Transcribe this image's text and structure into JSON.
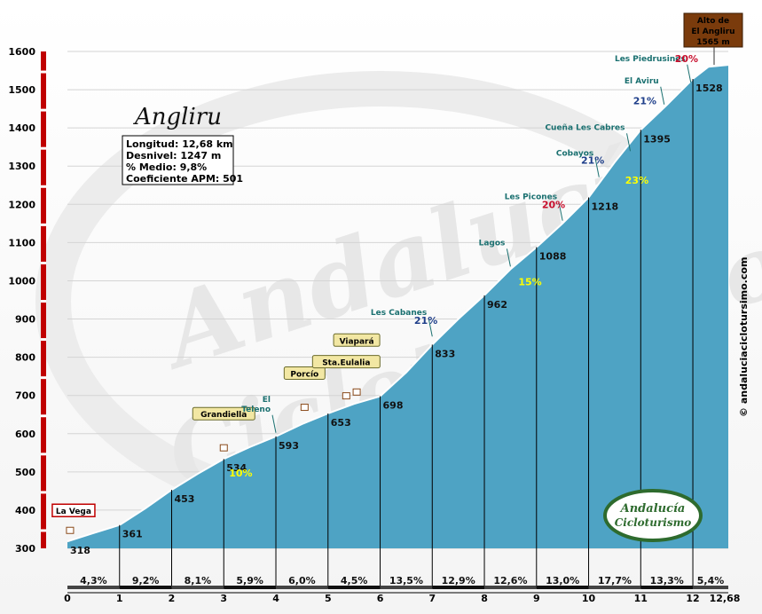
{
  "chart_data": {
    "type": "area",
    "title": "Angliru",
    "stats": [
      "Longitud: 12,68 km",
      "Desnivel: 1247 m",
      "% Medio: 9,8%",
      "Coeficiente APM: 501"
    ],
    "xlim": [
      0,
      12.68
    ],
    "ylim": [
      300,
      1600
    ],
    "x_ticks": [
      "0",
      "1",
      "2",
      "3",
      "4",
      "5",
      "6",
      "7",
      "8",
      "9",
      "10",
      "11",
      "12"
    ],
    "x_end_label": "12,68",
    "y_ticks": [
      "300",
      "400",
      "500",
      "600",
      "700",
      "800",
      "900",
      "1000",
      "1100",
      "1200",
      "1300",
      "1400",
      "1500",
      "1600"
    ],
    "profile": [
      {
        "x": 0,
        "y": 318
      },
      {
        "x": 0.5,
        "y": 340
      },
      {
        "x": 1,
        "y": 361
      },
      {
        "x": 1.5,
        "y": 405
      },
      {
        "x": 2,
        "y": 453
      },
      {
        "x": 2.5,
        "y": 495
      },
      {
        "x": 3,
        "y": 534
      },
      {
        "x": 3.5,
        "y": 565
      },
      {
        "x": 4,
        "y": 593
      },
      {
        "x": 4.5,
        "y": 625
      },
      {
        "x": 5,
        "y": 653
      },
      {
        "x": 5.5,
        "y": 678
      },
      {
        "x": 6,
        "y": 698
      },
      {
        "x": 6.5,
        "y": 760
      },
      {
        "x": 7,
        "y": 833
      },
      {
        "x": 7.5,
        "y": 900
      },
      {
        "x": 8,
        "y": 962
      },
      {
        "x": 8.5,
        "y": 1030
      },
      {
        "x": 9,
        "y": 1088
      },
      {
        "x": 9.5,
        "y": 1150
      },
      {
        "x": 10,
        "y": 1218
      },
      {
        "x": 10.5,
        "y": 1310
      },
      {
        "x": 11,
        "y": 1395
      },
      {
        "x": 11.5,
        "y": 1460
      },
      {
        "x": 12,
        "y": 1528
      },
      {
        "x": 12.3,
        "y": 1560
      },
      {
        "x": 12.68,
        "y": 1565
      }
    ],
    "km_elevations": [
      {
        "x": 0,
        "label": "318"
      },
      {
        "x": 1,
        "label": "361"
      },
      {
        "x": 2,
        "label": "453"
      },
      {
        "x": 3,
        "label": "534"
      },
      {
        "x": 4,
        "label": "593"
      },
      {
        "x": 5,
        "label": "653"
      },
      {
        "x": 6,
        "label": "698"
      },
      {
        "x": 7,
        "label": "833"
      },
      {
        "x": 8,
        "label": "962"
      },
      {
        "x": 9,
        "label": "1088"
      },
      {
        "x": 10,
        "label": "1218"
      },
      {
        "x": 11,
        "label": "1395"
      },
      {
        "x": 12,
        "label": "1528"
      }
    ],
    "segment_gradients": [
      {
        "x": 0.5,
        "label": "4,3%"
      },
      {
        "x": 1.5,
        "label": "9,2%"
      },
      {
        "x": 2.5,
        "label": "8,1%"
      },
      {
        "x": 3.5,
        "label": "5,9%"
      },
      {
        "x": 4.5,
        "label": "6,0%"
      },
      {
        "x": 5.5,
        "label": "4,5%"
      },
      {
        "x": 6.5,
        "label": "13,5%"
      },
      {
        "x": 7.5,
        "label": "12,9%"
      },
      {
        "x": 8.5,
        "label": "12,6%"
      },
      {
        "x": 9.5,
        "label": "13,0%"
      },
      {
        "x": 10.5,
        "label": "17,7%"
      },
      {
        "x": 11.5,
        "label": "13,3%"
      },
      {
        "x": 12.34,
        "label": "5,4%"
      }
    ],
    "summit": {
      "x": 12.68,
      "y": 1565,
      "lines": [
        "Alto de",
        "El Angliru",
        "1565 m"
      ]
    },
    "places": [
      {
        "x": 0.05,
        "y": 318,
        "label": "La Vega"
      },
      {
        "x": 3.0,
        "y": 534,
        "label": "Grandiella"
      },
      {
        "x": 4.55,
        "y": 640,
        "label": "Porcío"
      },
      {
        "x": 5.35,
        "y": 670,
        "label": "Sta.Eulalia"
      },
      {
        "x": 5.55,
        "y": 680,
        "label": "Viapará"
      }
    ],
    "teal_labels": [
      {
        "x": 4.0,
        "y": 593,
        "lines": [
          "El",
          "Teleno"
        ]
      },
      {
        "x": 7.0,
        "y": 845,
        "lines": [
          "Les Cabanes"
        ]
      },
      {
        "x": 8.5,
        "y": 1028,
        "lines": [
          "Lagos"
        ]
      },
      {
        "x": 9.5,
        "y": 1148,
        "lines": [
          "Les Picones"
        ]
      },
      {
        "x": 10.2,
        "y": 1262,
        "lines": [
          "Cobayos"
        ]
      },
      {
        "x": 10.8,
        "y": 1330,
        "lines": [
          "Cueña Les Cabres"
        ]
      },
      {
        "x": 11.45,
        "y": 1452,
        "lines": [
          "El Aviru"
        ]
      },
      {
        "x": 11.96,
        "y": 1510,
        "lines": [
          "Les Piedrusines"
        ]
      }
    ],
    "ramps": [
      {
        "x": 3.0,
        "y": 534,
        "label": "10%",
        "color": "yellow"
      },
      {
        "x": 7.0,
        "y": 845,
        "label": "21%",
        "color": "blue"
      },
      {
        "x": 8.55,
        "y": 1035,
        "label": "15%",
        "color": "yellow"
      },
      {
        "x": 9.45,
        "y": 1148,
        "label": "20%",
        "color": "red"
      },
      {
        "x": 10.2,
        "y": 1265,
        "label": "21%",
        "color": "blue"
      },
      {
        "x": 10.6,
        "y": 1300,
        "label": "23%",
        "color": "yellow"
      },
      {
        "x": 11.2,
        "y": 1420,
        "label": "21%",
        "color": "blue"
      },
      {
        "x": 12.0,
        "y": 1530,
        "label": "20%",
        "color": "red"
      }
    ],
    "credit": "© andaluciaciclotursimo.com",
    "logo_text": [
      "Andalucía",
      "Cicloturismo"
    ]
  }
}
